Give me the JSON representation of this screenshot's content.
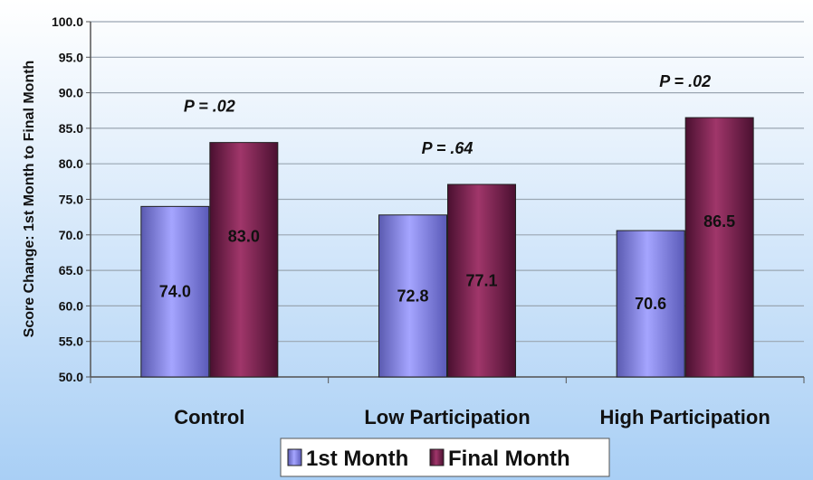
{
  "chart_data": {
    "type": "bar",
    "title": "",
    "xlabel": "",
    "ylabel": "Score Change: 1st Month to Final Month",
    "ylim": [
      50,
      100
    ],
    "yticks": [
      "50.0",
      "55.0",
      "60.0",
      "65.0",
      "70.0",
      "75.0",
      "80.0",
      "85.0",
      "90.0",
      "95.0",
      "100.0"
    ],
    "grid": true,
    "legend": "bottom",
    "categories": [
      "Control",
      "Low Participation",
      "High Participation"
    ],
    "series": [
      {
        "name": "1st Month",
        "values": [
          74.0,
          72.8,
          70.6
        ],
        "labels": [
          "74.0",
          "72.8",
          "70.6"
        ],
        "color": "#8f8ff0"
      },
      {
        "name": "Final Month",
        "values": [
          83.0,
          77.1,
          86.5
        ],
        "labels": [
          "83.0",
          "77.1",
          "86.5"
        ],
        "color": "#8a2a55"
      }
    ],
    "annotations": [
      "P = .02",
      "P = .64",
      "P = .02"
    ]
  }
}
